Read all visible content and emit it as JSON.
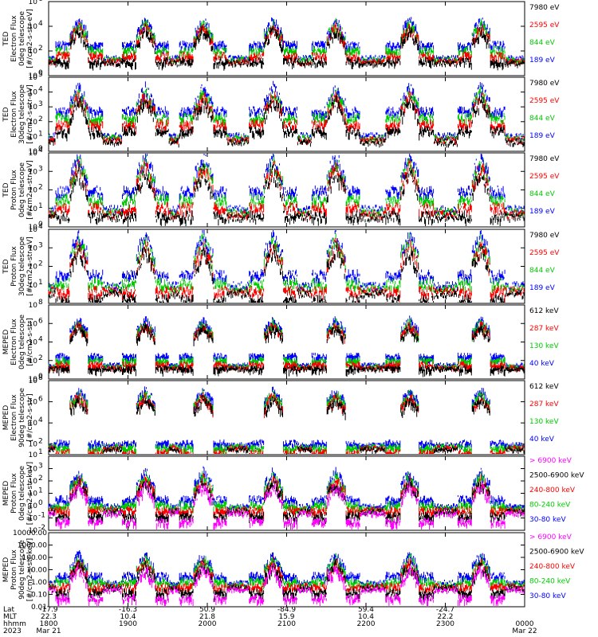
{
  "chart_data": [
    {
      "type": "line",
      "title": "TED Electron Flux 0deg telescope",
      "ylabel": [
        "TED",
        "Electron Flux",
        "0deg telescope",
        "[#/cm2-s-str-eV]"
      ],
      "yscale": "log",
      "ylim_exp": [
        0,
        6
      ],
      "ytick_style": "pow",
      "ytick_exps": [
        0,
        2,
        4,
        6
      ],
      "legend_position": "right",
      "legend": [
        {
          "name": "7980 eV",
          "color": "#000000"
        },
        {
          "name": "2595 eV",
          "color": "#ff0000"
        },
        {
          "name": "844 eV",
          "color": "#00cc00"
        },
        {
          "name": "189 eV",
          "color": "#0000ff"
        }
      ],
      "series_profile": {
        "base": 2.6,
        "peak": 4.6,
        "quiet": 1.5,
        "spikes": "electron"
      }
    },
    {
      "type": "line",
      "title": "TED Electron Flux 30deg telescope",
      "ylabel": [
        "TED",
        "Electron Flux",
        "30deg telescope",
        "[#/cm2-s-str-eV]"
      ],
      "yscale": "log",
      "ylim_exp": [
        0,
        5
      ],
      "ytick_style": "pow",
      "ytick_exps": [
        0,
        1,
        2,
        3,
        4,
        5
      ],
      "legend_position": "right",
      "legend": [
        {
          "name": "7980 eV",
          "color": "#000000"
        },
        {
          "name": "2595 eV",
          "color": "#ff0000"
        },
        {
          "name": "844 eV",
          "color": "#00cc00"
        },
        {
          "name": "189 eV",
          "color": "#0000ff"
        }
      ],
      "series_profile": {
        "base": 2.8,
        "peak": 4.4,
        "quiet": 1.1,
        "spikes": "electron"
      }
    },
    {
      "type": "line",
      "title": "TED Proton Flux 0deg telescope",
      "ylabel": [
        "TED",
        "Proton Flux",
        "0deg telescope",
        "[#/cm2-s-str-eV]"
      ],
      "yscale": "log",
      "ylim_exp": [
        0,
        4
      ],
      "ytick_style": "pow",
      "ytick_exps": [
        0,
        1,
        2,
        3,
        4
      ],
      "legend_position": "right",
      "legend": [
        {
          "name": "7980 eV",
          "color": "#000000"
        },
        {
          "name": "2595 eV",
          "color": "#ff0000"
        },
        {
          "name": "844 eV",
          "color": "#00cc00"
        },
        {
          "name": "189 eV",
          "color": "#0000ff"
        }
      ],
      "series_profile": {
        "base": 2.0,
        "peak": 3.9,
        "quiet": 1.0,
        "spikes": "proton"
      }
    },
    {
      "type": "line",
      "title": "TED Proton Flux 30deg telescope",
      "ylabel": [
        "TED",
        "Proton Flux",
        "30deg telescope",
        "[#/cm2-s-str-eV]"
      ],
      "yscale": "log",
      "ylim_exp": [
        0,
        4
      ],
      "ytick_style": "pow",
      "ytick_exps": [
        1,
        2,
        3,
        4
      ],
      "legend_position": "right",
      "legend": [
        {
          "name": "7980 eV",
          "color": "#000000"
        },
        {
          "name": "2595 eV",
          "color": "#ff0000"
        },
        {
          "name": "844 eV",
          "color": "#00cc00"
        },
        {
          "name": "189 eV",
          "color": "#0000ff"
        }
      ],
      "series_profile": {
        "base": 1.6,
        "peak": 3.8,
        "quiet": 1.0,
        "spikes": "proton"
      }
    },
    {
      "type": "line",
      "title": "MEPED Electron Flux 0deg telescope",
      "ylabel": [
        "MEPED",
        "Electron Flux",
        "0deg telescope",
        "[#/cm2-s-str]"
      ],
      "yscale": "log",
      "ylim_exp": [
        0,
        8
      ],
      "ytick_style": "pow",
      "ytick_exps": [
        0,
        2,
        4,
        6,
        8
      ],
      "legend_position": "right",
      "legend": [
        {
          "name": "612 keV",
          "color": "#000000"
        },
        {
          "name": "287 keV",
          "color": "#ff0000"
        },
        {
          "name": "130 keV",
          "color": "#00cc00"
        },
        {
          "name": "40 keV",
          "color": "#0000ff"
        }
      ],
      "series_profile": {
        "base": 2.6,
        "peak": 6.5,
        "quiet": 1.6,
        "spikes": "meped"
      }
    },
    {
      "type": "line",
      "title": "MEPED Electron Flux 90deg telescope",
      "ylabel": [
        "MEPED",
        "Electron Flux",
        "90deg telescope",
        "[#/cm2-s-str]"
      ],
      "yscale": "log",
      "ylim_exp": [
        1,
        8
      ],
      "ytick_style": "pow",
      "ytick_exps": [
        1,
        2,
        4,
        6,
        8
      ],
      "legend_position": "right",
      "legend": [
        {
          "name": "612 keV",
          "color": "#000000"
        },
        {
          "name": "287 keV",
          "color": "#ff0000"
        },
        {
          "name": "130 keV",
          "color": "#00cc00"
        },
        {
          "name": "40 keV",
          "color": "#0000ff"
        }
      ],
      "series_profile": {
        "base": 2.2,
        "peak": 7.2,
        "quiet": 2.0,
        "spikes": "meped"
      }
    },
    {
      "type": "line",
      "title": "MEPED Proton Flux 0deg telescope",
      "ylabel": [
        "MEPED",
        "Proton Flux",
        "0deg telescope",
        "[#/cm2-s-str-keV]"
      ],
      "yscale": "log",
      "ylim_exp": [
        -2,
        4
      ],
      "ytick_style": "pow",
      "ytick_exps": [
        -2,
        -1,
        0,
        1,
        2,
        3
      ],
      "legend_position": "right",
      "legend": [
        {
          "name": "> 6900 keV",
          "color": "#ff00ff"
        },
        {
          "name": "2500-6900 keV",
          "color": "#000000"
        },
        {
          "name": "240-800 keV",
          "color": "#ff0000"
        },
        {
          "name": "80-240 keV",
          "color": "#00cc00"
        },
        {
          "name": "30-80 keV",
          "color": "#0000ff"
        }
      ],
      "series_profile": {
        "base": 0.6,
        "peak": 2.8,
        "quiet": 0.0,
        "spikes": "mproton"
      }
    },
    {
      "type": "line",
      "title": "MEPED Proton Flux 90deg telescope",
      "ylabel": [
        "MEPED",
        "Proton Flux",
        "90deg telescope",
        "[#/cm2-s-str-keV]"
      ],
      "yscale": "log",
      "ylim_exp": [
        -2,
        4
      ],
      "ytick_style": "dec",
      "ytick_labels": [
        "0.01",
        "0.10",
        "1.00",
        "10.00",
        "100.00",
        "1000.00",
        "10000.00"
      ],
      "legend_position": "right",
      "legend": [
        {
          "name": "> 6900 keV",
          "color": "#ff00ff"
        },
        {
          "name": "2500-6900 keV",
          "color": "#000000"
        },
        {
          "name": "240-800 keV",
          "color": "#ff0000"
        },
        {
          "name": "80-240 keV",
          "color": "#00cc00"
        },
        {
          "name": "30-80 keV",
          "color": "#0000ff"
        }
      ],
      "series_profile": {
        "base": 0.6,
        "peak": 2.3,
        "quiet": 0.0,
        "spikes": "mproton"
      }
    }
  ],
  "x_axis": {
    "row_labels": [
      "Lat",
      "MLT",
      "hhmm",
      "2023"
    ],
    "columns": [
      {
        "lat": "-17.9",
        "mlt": "22.3",
        "hhmm": "1800",
        "date": "Mar 21"
      },
      {
        "lat": "-16.3",
        "mlt": "10.4",
        "hhmm": "1900",
        "date": ""
      },
      {
        "lat": "50.9",
        "mlt": "21.8",
        "hhmm": "2000",
        "date": ""
      },
      {
        "lat": "-84.9",
        "mlt": "15.9",
        "hhmm": "2100",
        "date": ""
      },
      {
        "lat": "59.4",
        "mlt": "10.4",
        "hhmm": "2200",
        "date": ""
      },
      {
        "lat": "-24.7",
        "mlt": "22.2",
        "hhmm": "2300",
        "date": ""
      },
      {
        "lat": "",
        "mlt": "",
        "hhmm": "0000",
        "date": "Mar 22"
      }
    ],
    "x_hours": [
      0,
      1,
      2,
      3,
      4,
      5,
      6
    ]
  },
  "passes_hours": [
    0.38,
    1.22,
    1.95,
    2.83,
    3.62,
    4.55,
    5.45
  ],
  "colors": {
    "black": "#000000",
    "red": "#ff0000",
    "green": "#00cc00",
    "blue": "#0000ff",
    "magenta": "#ff00ff"
  }
}
